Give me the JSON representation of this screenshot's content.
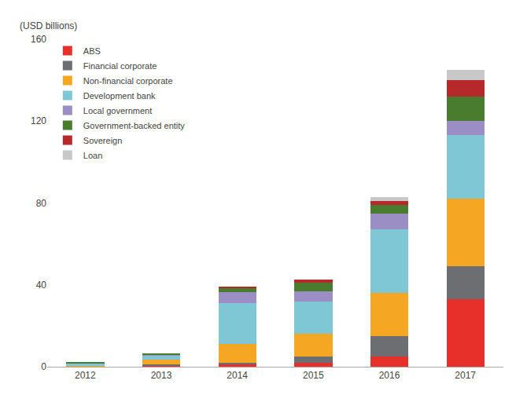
{
  "chart_data": {
    "type": "bar",
    "stacked": true,
    "ylabel": "(USD billions)",
    "categories": [
      "2012",
      "2013",
      "2014",
      "2015",
      "2016",
      "2017"
    ],
    "series": [
      {
        "name": "ABS",
        "color": "#e8302a",
        "values": [
          0.0,
          0.5,
          1.0,
          2.0,
          5.0,
          33.0
        ]
      },
      {
        "name": "Financial corporate",
        "color": "#6d6e71",
        "values": [
          0.2,
          0.5,
          1.0,
          3.0,
          10.0,
          16.0
        ]
      },
      {
        "name": "Non-financial corporate",
        "color": "#f5a623",
        "values": [
          0.3,
          2.5,
          9.0,
          11.0,
          21.0,
          33.0
        ]
      },
      {
        "name": "Development bank",
        "color": "#7fc7d4",
        "values": [
          1.2,
          2.0,
          20.0,
          16.0,
          31.0,
          31.0
        ]
      },
      {
        "name": "Local government",
        "color": "#9b8ec4",
        "values": [
          0.0,
          0.5,
          5.5,
          5.0,
          8.0,
          7.0
        ]
      },
      {
        "name": "Government-backed entity",
        "color": "#4a7c2f",
        "values": [
          0.3,
          0.5,
          2.0,
          4.0,
          4.0,
          12.0
        ]
      },
      {
        "name": "Sovereign",
        "color": "#b5292a",
        "values": [
          0.0,
          0.0,
          0.5,
          1.5,
          2.0,
          8.0
        ]
      },
      {
        "name": "Loan",
        "color": "#c8c8c8",
        "values": [
          0.0,
          0.0,
          0.0,
          0.0,
          2.0,
          5.0
        ]
      }
    ],
    "ylim": [
      0,
      160
    ],
    "yticks": [
      0,
      40,
      80,
      120,
      160
    ],
    "grid": false,
    "legend": "upper left"
  }
}
